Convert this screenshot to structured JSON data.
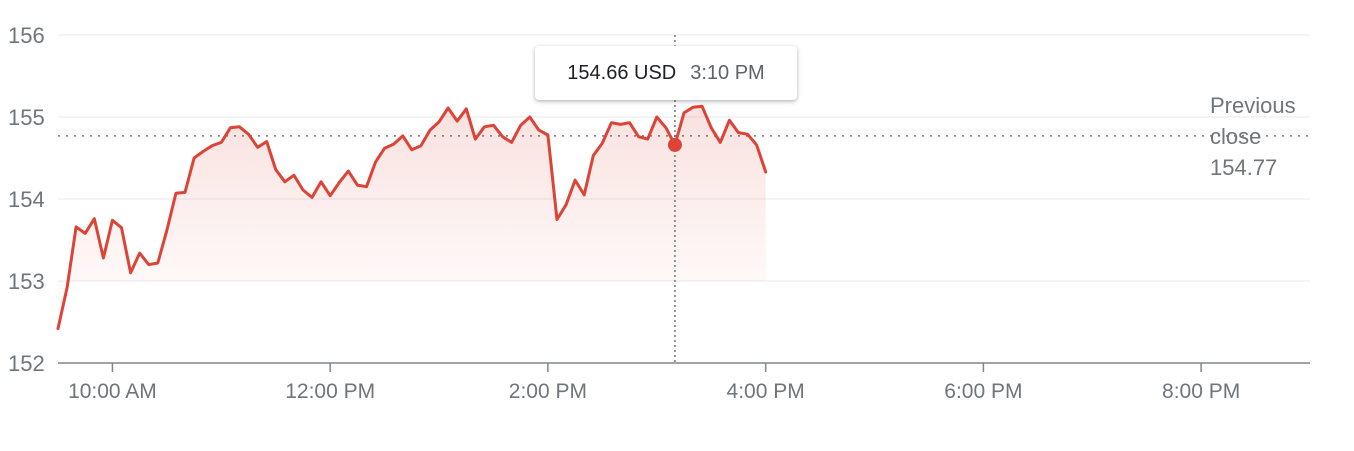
{
  "chart_data": {
    "type": "line",
    "xlabel": "",
    "ylabel": "",
    "ylim": [
      152,
      156
    ],
    "xlim": [
      "09:30",
      "21:00"
    ],
    "y_ticks": [
      "152",
      "153",
      "154",
      "155",
      "156"
    ],
    "x_ticks": [
      {
        "label": "10:00 AM",
        "time": "10:00"
      },
      {
        "label": "12:00 PM",
        "time": "12:00"
      },
      {
        "label": "2:00 PM",
        "time": "14:00"
      },
      {
        "label": "4:00 PM",
        "time": "16:00"
      },
      {
        "label": "6:00 PM",
        "time": "18:00"
      },
      {
        "label": "8:00 PM",
        "time": "20:00"
      }
    ],
    "grid": true,
    "series": [
      {
        "color": "#db4437",
        "points": [
          [
            "09:30",
            152.42
          ],
          [
            "09:35",
            152.92
          ],
          [
            "09:40",
            153.66
          ],
          [
            "09:45",
            153.58
          ],
          [
            "09:50",
            153.76
          ],
          [
            "09:55",
            153.28
          ],
          [
            "10:00",
            153.74
          ],
          [
            "10:05",
            153.65
          ],
          [
            "10:10",
            153.1
          ],
          [
            "10:15",
            153.34
          ],
          [
            "10:20",
            153.2
          ],
          [
            "10:25",
            153.22
          ],
          [
            "10:30",
            153.62
          ],
          [
            "10:35",
            154.07
          ],
          [
            "10:40",
            154.08
          ],
          [
            "10:45",
            154.5
          ],
          [
            "10:50",
            154.58
          ],
          [
            "10:55",
            154.65
          ],
          [
            "11:00",
            154.69
          ],
          [
            "11:05",
            154.87
          ],
          [
            "11:10",
            154.88
          ],
          [
            "11:15",
            154.79
          ],
          [
            "11:20",
            154.63
          ],
          [
            "11:25",
            154.7
          ],
          [
            "11:30",
            154.36
          ],
          [
            "11:35",
            154.21
          ],
          [
            "11:40",
            154.29
          ],
          [
            "11:45",
            154.11
          ],
          [
            "11:50",
            154.02
          ],
          [
            "11:55",
            154.21
          ],
          [
            "12:00",
            154.04
          ],
          [
            "12:05",
            154.2
          ],
          [
            "12:10",
            154.34
          ],
          [
            "12:15",
            154.17
          ],
          [
            "12:20",
            154.15
          ],
          [
            "12:25",
            154.45
          ],
          [
            "12:30",
            154.62
          ],
          [
            "12:35",
            154.67
          ],
          [
            "12:40",
            154.77
          ],
          [
            "12:45",
            154.6
          ],
          [
            "12:50",
            154.65
          ],
          [
            "12:55",
            154.84
          ],
          [
            "13:00",
            154.94
          ],
          [
            "13:05",
            155.11
          ],
          [
            "13:10",
            154.95
          ],
          [
            "13:15",
            155.1
          ],
          [
            "13:20",
            154.73
          ],
          [
            "13:25",
            154.88
          ],
          [
            "13:30",
            154.9
          ],
          [
            "13:35",
            154.76
          ],
          [
            "13:40",
            154.69
          ],
          [
            "13:45",
            154.9
          ],
          [
            "13:50",
            155.0
          ],
          [
            "13:55",
            154.84
          ],
          [
            "14:00",
            154.78
          ],
          [
            "14:05",
            153.75
          ],
          [
            "14:10",
            153.93
          ],
          [
            "14:15",
            154.23
          ],
          [
            "14:20",
            154.05
          ],
          [
            "14:25",
            154.53
          ],
          [
            "14:30",
            154.68
          ],
          [
            "14:35",
            154.93
          ],
          [
            "14:40",
            154.91
          ],
          [
            "14:45",
            154.93
          ],
          [
            "14:50",
            154.76
          ],
          [
            "14:55",
            154.73
          ],
          [
            "15:00",
            155.0
          ],
          [
            "15:05",
            154.87
          ],
          [
            "15:10",
            154.66
          ],
          [
            "15:15",
            155.05
          ],
          [
            "15:20",
            155.12
          ],
          [
            "15:25",
            155.13
          ],
          [
            "15:30",
            154.87
          ],
          [
            "15:35",
            154.69
          ],
          [
            "15:40",
            154.96
          ],
          [
            "15:45",
            154.81
          ],
          [
            "15:50",
            154.79
          ],
          [
            "15:55",
            154.66
          ],
          [
            "16:00",
            154.33
          ]
        ]
      }
    ],
    "reference_line": {
      "value": 154.77,
      "label_lines": [
        "Previous",
        "close",
        "154.77"
      ]
    },
    "hover": {
      "time": "15:10",
      "price": 154.66,
      "price_label": "154.66 USD",
      "time_label": "3:10 PM"
    }
  }
}
